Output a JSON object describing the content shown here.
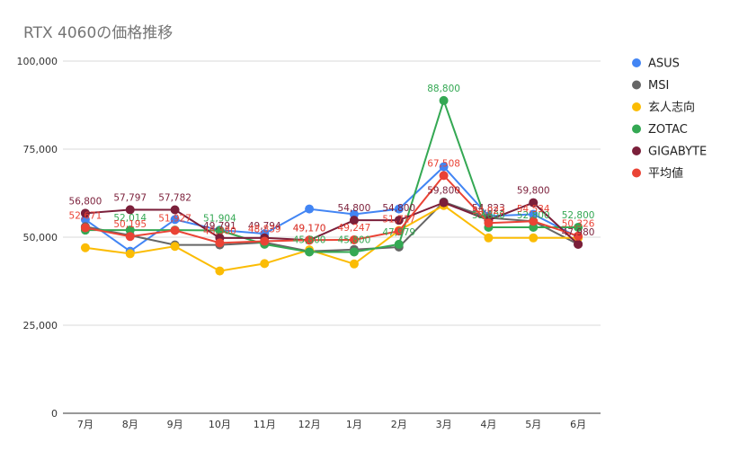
{
  "chart_data": {
    "type": "line",
    "title": "RTX 4060の価格推移",
    "xlabel": "",
    "ylabel": "",
    "categories": [
      "7月",
      "8月",
      "9月",
      "10月",
      "11月",
      "12月",
      "1月",
      "2月",
      "3月",
      "4月",
      "5月",
      "6月"
    ],
    "ylim": [
      0,
      100000
    ],
    "yticks": [
      0,
      25000,
      50000,
      75000,
      100000
    ],
    "ytick_labels": [
      "0",
      "25,000",
      "50,000",
      "75,000",
      "100,000"
    ],
    "grid": true,
    "legend_position": "right",
    "series": [
      {
        "name": "ASUS",
        "color": "#4285f4",
        "values": [
          55000,
          46000,
          55000,
          52000,
          51000,
          58000,
          56500,
          58000,
          70000,
          56000,
          56500,
          50000
        ],
        "labels": [
          "",
          "",
          "",
          "",
          "",
          "",
          "",
          "",
          "",
          "",
          "",
          ""
        ]
      },
      {
        "name": "MSI",
        "color": "#666666",
        "values": [
          53000,
          50500,
          47800,
          47800,
          48500,
          46000,
          46500,
          47200,
          60000,
          55500,
          54500,
          48000
        ],
        "labels": [
          "",
          "",
          "",
          "",
          "",
          "",
          "",
          "",
          "",
          "",
          "",
          ""
        ]
      },
      {
        "name": "玄人志向",
        "color": "#fbbc04",
        "values": [
          47000,
          45300,
          47400,
          40400,
          42500,
          46400,
          42400,
          51900,
          59000,
          49800,
          49800,
          49800
        ],
        "labels": [
          "",
          "",
          "",
          "",
          "",
          "",
          "",
          "",
          "",
          "",
          "",
          ""
        ]
      },
      {
        "name": "ZOTAC",
        "color": "#34a853",
        "values": [
          52000,
          52014,
          52000,
          51904,
          48000,
          45800,
          45800,
          47979,
          88800,
          52800,
          52800,
          52800
        ],
        "labels": [
          "",
          "52,014",
          "",
          "51,904",
          "",
          "45,800",
          "45,800",
          "47,979",
          "88,800",
          "52,800",
          "52,800",
          "52,800"
        ]
      },
      {
        "name": "GIGABYTE",
        "color": "#7b1f3a",
        "values": [
          56800,
          57797,
          57782,
          49791,
          49794,
          49170,
          54800,
          54800,
          59800,
          54823,
          59800,
          47980
        ],
        "labels": [
          "56,800",
          "57,797",
          "57,782",
          "49,791",
          "49,794",
          "49,170",
          "54,800",
          "54,800",
          "59,800",
          "54,823",
          "59,800",
          "47,980"
        ]
      },
      {
        "name": "平均値",
        "color": "#ea4335",
        "values": [
          52671,
          50195,
          51927,
          48380,
          48839,
          49170,
          49247,
          51717,
          67508,
          54023,
          54534,
          50326
        ],
        "labels": [
          "52,671",
          "50,195",
          "51,927",
          "48,380",
          "48,839",
          "49,170",
          "49,247",
          "51,717",
          "67,508",
          "54,023",
          "54,534",
          "50,326"
        ]
      }
    ]
  }
}
